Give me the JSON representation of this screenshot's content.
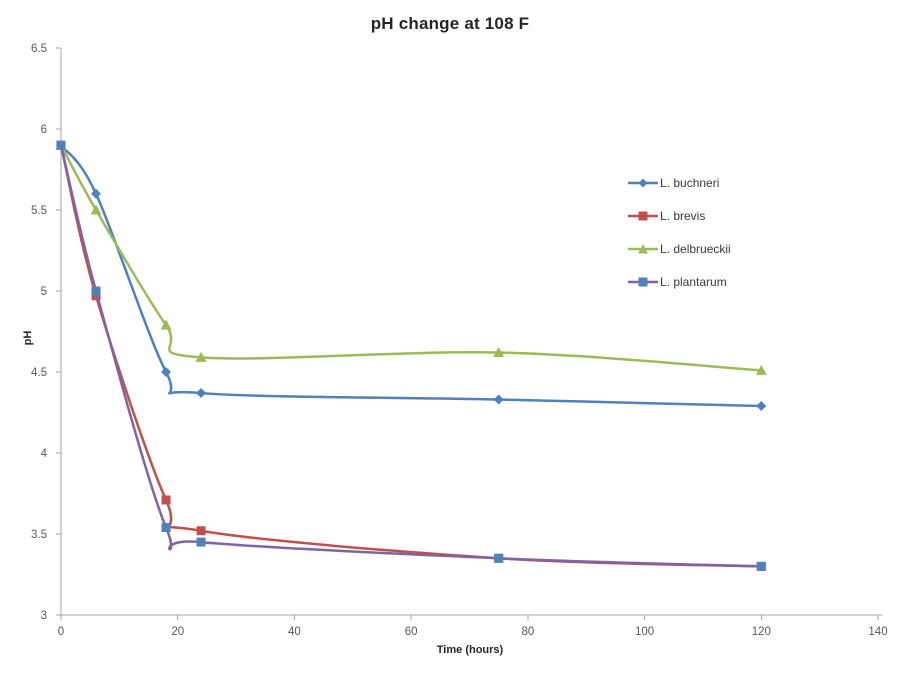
{
  "chart_data": {
    "type": "line",
    "title": "pH change at 108 F",
    "xlabel": "Time (hours)",
    "ylabel": "pH",
    "x": [
      0,
      6,
      18,
      24,
      75,
      120
    ],
    "series": [
      {
        "name": "L. buchneri",
        "color": "#4f81bd",
        "marker": "diamond",
        "marker_color": "#4f81bd",
        "values": [
          5.9,
          5.6,
          4.5,
          4.37,
          4.33,
          4.29
        ]
      },
      {
        "name": "L. brevis",
        "color": "#c0504d",
        "marker": "square",
        "marker_color": "#c0504d",
        "values": [
          5.9,
          4.97,
          3.71,
          3.52,
          3.35,
          3.3
        ]
      },
      {
        "name": "L. delbrueckii",
        "color": "#9bbb59",
        "marker": "triangle",
        "marker_color": "#9bbb59",
        "values": [
          5.9,
          5.5,
          4.79,
          4.59,
          4.62,
          4.51
        ]
      },
      {
        "name": "L. plantarum",
        "color": "#8064a2",
        "marker": "square",
        "marker_color": "#4f81bd",
        "values": [
          5.9,
          5.0,
          3.54,
          3.45,
          3.35,
          3.3
        ]
      }
    ],
    "xlim": [
      0,
      140
    ],
    "ylim": [
      3,
      6.5
    ],
    "x_ticks": [
      0,
      20,
      40,
      60,
      80,
      100,
      120,
      140
    ],
    "y_ticks": [
      3,
      3.5,
      4,
      4.5,
      5,
      5.5,
      6,
      6.5
    ],
    "grid": false,
    "smooth_lines": true,
    "legend_position": "right-middle",
    "axis_color": "#a6a6a6",
    "tick_label_color": "#595959",
    "title_color": "#262626"
  }
}
